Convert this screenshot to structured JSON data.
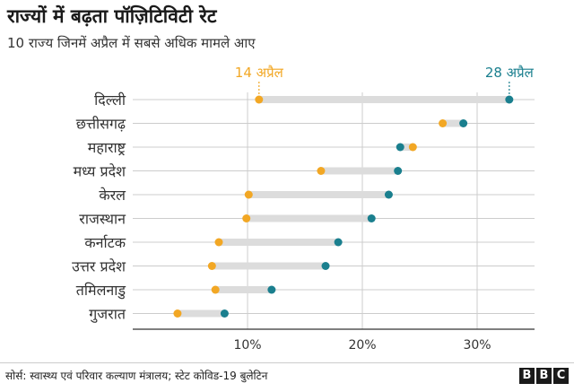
{
  "title": "राज्यों में बढ़ता पॉज़िटिविटी रेट",
  "subtitle": "10 राज्य जिनमें अप्रैल में सबसे अधिक मामले आए",
  "source": "सोर्स: स्वास्थ्य एवं परिवार कल्याण मंत्रालय; स्टेट कोविड-19 बुलेटिन",
  "logo_letters": [
    "B",
    "B",
    "C"
  ],
  "colors": {
    "start": "#f2a724",
    "end": "#1a7f8e",
    "bar": "#dcdcdc",
    "grid": "#cccccc",
    "axis": "#333333"
  },
  "chart_data": {
    "type": "dumbbell",
    "categories": [
      "दिल्ली",
      "छत्तीसगढ़",
      "महाराष्ट्र",
      "मध्य प्रदेश",
      "केरल",
      "राजस्थान",
      "कर्नाटक",
      "उत्तर प्रदेश",
      "तमिलनाडु",
      "गुजरात"
    ],
    "series": [
      {
        "name": "14 अप्रैल",
        "values": [
          11.0,
          27.0,
          24.4,
          16.4,
          10.1,
          9.9,
          7.5,
          6.9,
          7.2,
          3.9
        ]
      },
      {
        "name": "28 अप्रैल",
        "values": [
          32.8,
          28.8,
          23.3,
          23.1,
          22.3,
          20.8,
          17.9,
          16.8,
          12.1,
          8.0
        ]
      }
    ],
    "xlim": [
      0,
      35
    ],
    "xticks": [
      10,
      20,
      30
    ],
    "xtick_labels": [
      "10%",
      "20%",
      "30%"
    ],
    "grid": true,
    "legend": "top, labels placed above the first row markers"
  }
}
